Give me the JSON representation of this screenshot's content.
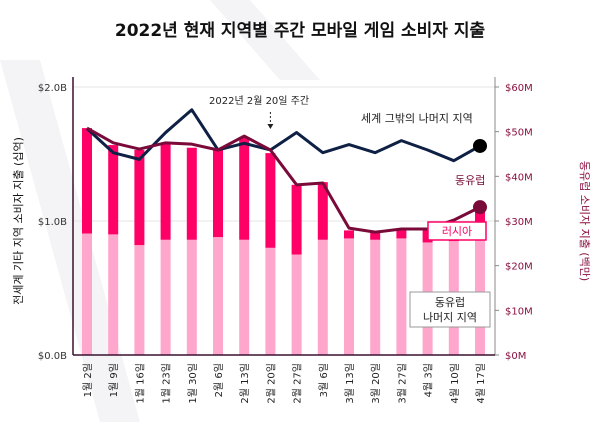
{
  "chart_data": {
    "type": "bar",
    "title": "2022년 현재 지역별 주간 모바일 게임 소비자 지출",
    "ylabel_left": "전세계 기타 지역 소비자 지출 (십억)",
    "ylabel_right": "동유럽 소비자 지출 (백만)",
    "left_ticks": [
      "$0.0B",
      "$1.0B",
      "$2.0B"
    ],
    "left_ylim": [
      0,
      2.0
    ],
    "right_ticks": [
      "$0M",
      "$10M",
      "$20M",
      "$30M",
      "$40M",
      "$50M",
      "$60M"
    ],
    "right_ylim": [
      0,
      60
    ],
    "grid": true,
    "categories": [
      "1월 2일",
      "1월 9일",
      "1월 16일",
      "1월 23일",
      "1월 30일",
      "2월 6일",
      "2월 13일",
      "2월 20일",
      "2월 27일",
      "3월 6일",
      "3월 13일",
      "3월 20일",
      "3월 27일",
      "4월 3일",
      "4월 10일",
      "4월 17일"
    ],
    "series": [
      {
        "name": "러시아",
        "kind": "bar-stacked-top",
        "axis": "right",
        "color": "#ff0066",
        "values": [
          23.6,
          20.0,
          21.3,
          21.6,
          20.6,
          19.5,
          23.0,
          21.2,
          15.6,
          12.9,
          1.8,
          2.0,
          2.2,
          3.0,
          2.3,
          6.6
        ]
      },
      {
        "name": "동유럽 나머지 지역",
        "kind": "bar-stacked-base",
        "axis": "right",
        "color": "#ffa6cc",
        "values": [
          27.2,
          27.0,
          24.6,
          25.8,
          25.8,
          26.4,
          25.8,
          24.0,
          22.5,
          25.8,
          26.1,
          25.8,
          26.1,
          25.2,
          25.5,
          26.1
        ]
      },
      {
        "name": "세계 그밖의 나머지 지역",
        "kind": "line",
        "axis": "left",
        "color": "#0e2044",
        "values": [
          1.69,
          1.51,
          1.46,
          1.66,
          1.83,
          1.53,
          1.58,
          1.53,
          1.66,
          1.51,
          1.57,
          1.51,
          1.6,
          1.53,
          1.45,
          1.56
        ]
      },
      {
        "name": "동유럽",
        "kind": "line",
        "axis": "right",
        "color": "#7a0a3a",
        "values": [
          50.8,
          47.5,
          46.1,
          47.5,
          47.2,
          45.9,
          49.0,
          45.9,
          38.1,
          38.5,
          28.4,
          27.5,
          28.2,
          28.2,
          30.2,
          33.1
        ]
      }
    ],
    "annotations": {
      "event": "2022년 2월 20일 주간"
    },
    "legend_placement": "inline labels"
  }
}
